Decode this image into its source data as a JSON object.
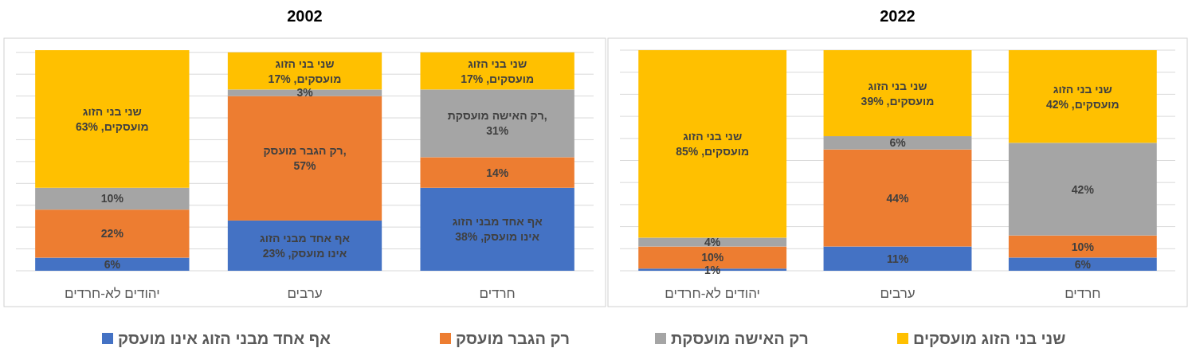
{
  "chart_data": [
    {
      "type": "bar",
      "title": "2002",
      "stacked": true,
      "categories": [
        "יהודים לא-חרדים",
        "ערבים",
        "חרדים"
      ],
      "ylim": [
        0,
        101
      ],
      "yticks": [
        {
          "value": 0,
          "label": null
        },
        {
          "value": 10,
          "label": null
        },
        {
          "value": 20,
          "label": null
        },
        {
          "value": 30,
          "label": null
        },
        {
          "value": 40,
          "label": null
        },
        {
          "value": 50,
          "label": null
        },
        {
          "value": 60,
          "label": null
        },
        {
          "value": 70,
          "label": null
        },
        {
          "value": 80,
          "label": null
        },
        {
          "value": 90,
          "label": null
        },
        {
          "value": 100,
          "label": null
        }
      ],
      "tick_labels": "x",
      "grid": "y",
      "legend": "bottom",
      "series": [
        {
          "name": "אף אחד מבני הזוג אינו מועסק",
          "color": "#4472c4",
          "values": [
            6,
            23,
            38
          ],
          "value_labels": [
            "6%",
            "אף אחד מבני הזוג\nאינו מועסק, 23%",
            "אף אחד מבני הזוג\nאינו מועסק, 38%"
          ]
        },
        {
          "name": "רק הגבר מועסק",
          "color": "#ed7d31",
          "values": [
            22,
            57,
            14
          ],
          "value_labels": [
            "22%",
            "רק הגבר מועסק,\n57%",
            "14%"
          ]
        },
        {
          "name": "רק האישה מועסקת",
          "color": "#a5a5a5",
          "values": [
            10,
            3,
            31
          ],
          "value_labels": [
            "10%",
            "3%",
            "רק האישה מועסקת,\n31%"
          ]
        },
        {
          "name": "שני בני הזוג מועסקים",
          "color": "#ffc000",
          "values": [
            63,
            17,
            17
          ],
          "value_labels": [
            "שני בני הזוג\nמועסקים, 63%",
            "שני בני הזוג\nמועסקים, 17%",
            "שני בני הזוג\nמועסקים, 17%"
          ]
        }
      ]
    },
    {
      "type": "bar",
      "title": "2022",
      "stacked": true,
      "categories": [
        "יהודים לא-חרדים",
        "ערבים",
        "חרדים"
      ],
      "ylim": [
        0,
        100
      ],
      "yticks": [
        {
          "value": 0,
          "label": null
        },
        {
          "value": 10,
          "label": null
        },
        {
          "value": 20,
          "label": null
        },
        {
          "value": 30,
          "label": null
        },
        {
          "value": 40,
          "label": null
        },
        {
          "value": 50,
          "label": null
        },
        {
          "value": 60,
          "label": null
        },
        {
          "value": 70,
          "label": null
        },
        {
          "value": 80,
          "label": null
        },
        {
          "value": 90,
          "label": null
        },
        {
          "value": 100,
          "label": null
        }
      ],
      "tick_labels": "x",
      "grid": "y",
      "legend": "bottom",
      "series": [
        {
          "color": "#4472c4",
          "values": [
            1,
            11,
            6
          ],
          "value_labels": [
            "1%",
            "11%",
            "6%"
          ]
        },
        {
          "color": "#ed7d31",
          "values": [
            10,
            44,
            10
          ],
          "value_labels": [
            "10%",
            "44%",
            "10%"
          ]
        },
        {
          "color": "#a5a5a5",
          "values": [
            4,
            6,
            42
          ],
          "value_labels": [
            "4%",
            "6%",
            "42%"
          ]
        },
        {
          "color": "#ffc000",
          "values": [
            85,
            39,
            42
          ],
          "value_labels": [
            "שני בני הזוג\nמועסקים, 85%",
            "שני בני הזוג\nמועסקים, 39%",
            "שני בני הזוג\nמועסקים, 42%"
          ]
        }
      ]
    }
  ]
}
